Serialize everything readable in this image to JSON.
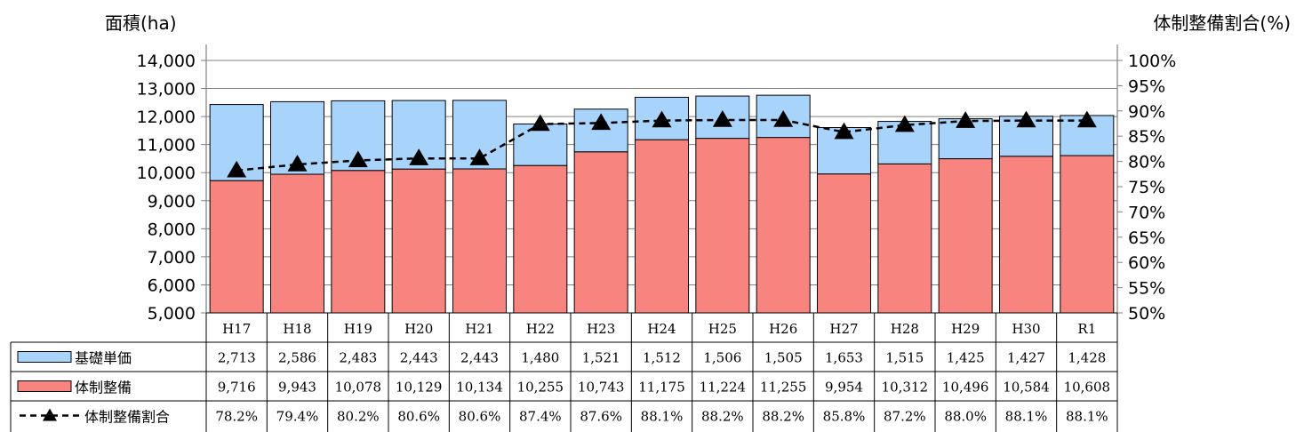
{
  "chart_data": {
    "type": "bar",
    "y_left_title": "面積(ha)",
    "y_right_title": "体制整備割合(%)",
    "categories": [
      "H17",
      "H18",
      "H19",
      "H20",
      "H21",
      "H22",
      "H23",
      "H24",
      "H25",
      "H26",
      "H27",
      "H28",
      "H29",
      "H30",
      "R1"
    ],
    "ylim_left": [
      5000,
      14000
    ],
    "ylim_right": [
      50,
      100
    ],
    "y_left_ticks": [
      "5,000",
      "6,000",
      "7,000",
      "8,000",
      "9,000",
      "10,000",
      "11,000",
      "12,000",
      "13,000",
      "14,000"
    ],
    "y_right_ticks": [
      "50%",
      "55%",
      "60%",
      "65%",
      "70%",
      "75%",
      "80%",
      "85%",
      "90%",
      "95%",
      "100%"
    ],
    "series": [
      {
        "name": "基礎単価",
        "kind": "stacked-bar-top",
        "color": "#a8d4fc",
        "values": [
          2713,
          2586,
          2483,
          2443,
          2443,
          1480,
          1521,
          1512,
          1506,
          1505,
          1653,
          1515,
          1425,
          1427,
          1428
        ],
        "labels": [
          "2,713",
          "2,586",
          "2,483",
          "2,443",
          "2,443",
          "1,480",
          "1,521",
          "1,512",
          "1,506",
          "1,505",
          "1,653",
          "1,515",
          "1,425",
          "1,427",
          "1,428"
        ]
      },
      {
        "name": "体制整備",
        "kind": "stacked-bar-bottom",
        "color": "#f88480",
        "values": [
          9716,
          9943,
          10078,
          10129,
          10134,
          10255,
          10743,
          11175,
          11224,
          11255,
          9954,
          10312,
          10496,
          10584,
          10608
        ],
        "labels": [
          "9,716",
          "9,943",
          "10,078",
          "10,129",
          "10,134",
          "10,255",
          "10,743",
          "11,175",
          "11,224",
          "11,255",
          "9,954",
          "10,312",
          "10,496",
          "10,584",
          "10,608"
        ]
      },
      {
        "name": "体制整備割合",
        "kind": "line-right-axis",
        "color": "#000000",
        "values": [
          78.2,
          79.4,
          80.2,
          80.6,
          80.6,
          87.4,
          87.6,
          88.1,
          88.2,
          88.2,
          85.8,
          87.2,
          88.0,
          88.1,
          88.1
        ],
        "labels": [
          "78.2%",
          "79.4%",
          "80.2%",
          "80.6%",
          "80.6%",
          "87.4%",
          "87.6%",
          "88.1%",
          "88.2%",
          "88.2%",
          "85.8%",
          "87.2%",
          "88.0%",
          "88.1%",
          "88.1%"
        ]
      }
    ],
    "grid": true,
    "legend": "data-table"
  }
}
